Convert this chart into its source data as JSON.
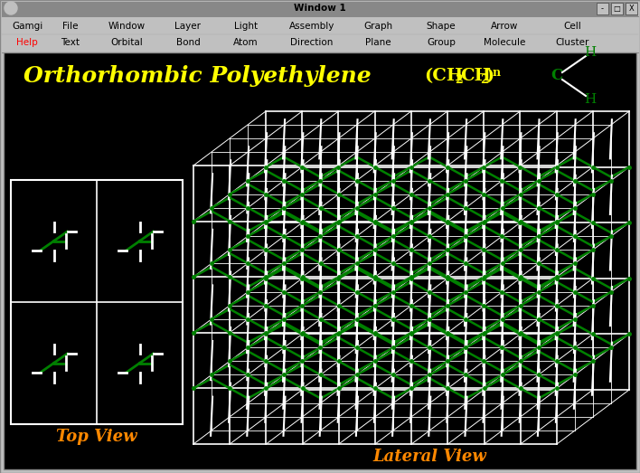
{
  "title_text": "Orthorhombic Polyethylene",
  "formula_parts": [
    "(CH",
    "2",
    "CH",
    "2",
    ")",
    "n"
  ],
  "bg_color": "#000000",
  "window_border_color": "#c0c0c0",
  "title_color": "#ffff00",
  "formula_color": "#ffff00",
  "orange_label_color": "#ff8800",
  "white_color": "#ffffff",
  "green_color": "#008000",
  "green_chain_color": "#008000",
  "red_color": "#ff0000",
  "menu_items_row1": [
    "Gamgi",
    "File",
    "Window",
    "Layer",
    "Light",
    "Assembly",
    "Graph",
    "Shape",
    "Arrow",
    "Cell"
  ],
  "menu_items_row2": [
    "Help",
    "Text",
    "Orbital",
    "Bond",
    "Atom",
    "Direction",
    "Plane",
    "Group",
    "Molecule",
    "Cluster"
  ],
  "top_view_label": "Top View",
  "lateral_view_label": "Lateral View",
  "window_title": "Window 1",
  "figsize": [
    7.08,
    5.23
  ],
  "dpi": 100
}
